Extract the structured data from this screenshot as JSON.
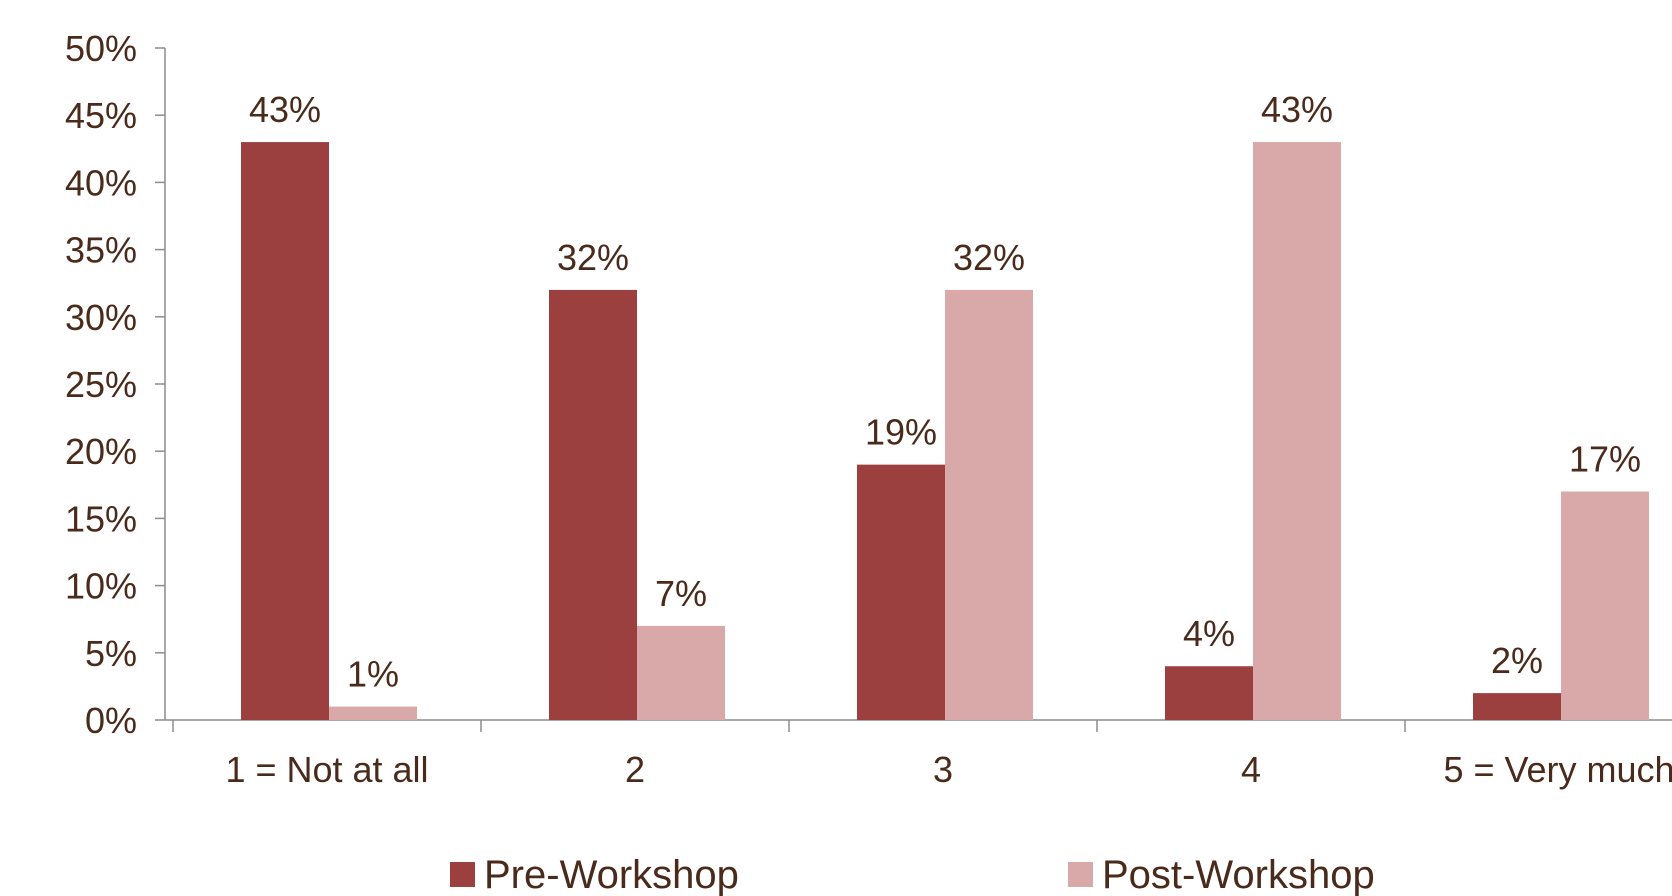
{
  "chart_data": {
    "type": "bar",
    "categories": [
      "1 = Not at all",
      "2",
      "3",
      "4",
      "5 = Very much"
    ],
    "series": [
      {
        "name": "Pre-Workshop",
        "values": [
          43,
          32,
          19,
          4,
          2
        ],
        "color": "#9b3f3f"
      },
      {
        "name": "Post-Workshop",
        "values": [
          1,
          7,
          32,
          43,
          17
        ],
        "color": "#d9a8a8"
      }
    ],
    "data_labels": [
      [
        "43%",
        "32%",
        "19%",
        "4%",
        "2%"
      ],
      [
        "1%",
        "7%",
        "32%",
        "43%",
        "17%"
      ]
    ],
    "y_ticks": [
      "0%",
      "5%",
      "10%",
      "15%",
      "20%",
      "25%",
      "30%",
      "35%",
      "40%",
      "45%",
      "50%"
    ],
    "ylim": [
      0,
      50
    ],
    "grid": false,
    "legend_position": "bottom",
    "text_color": "#4a2a1a"
  }
}
